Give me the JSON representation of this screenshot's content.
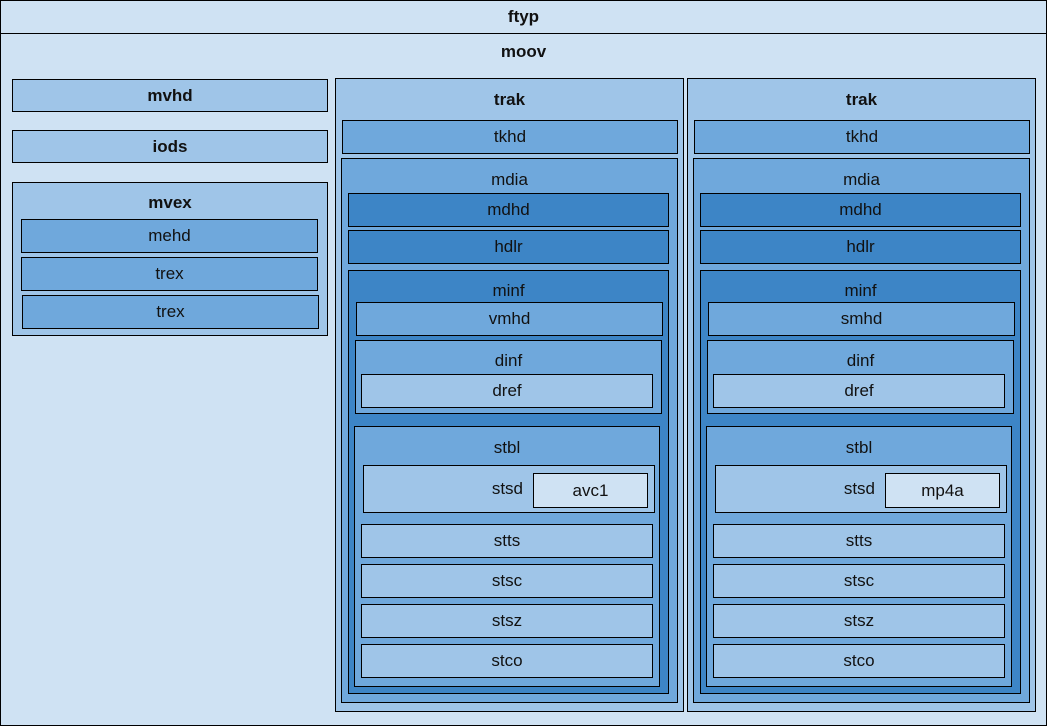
{
  "colors": {
    "lightest": "#cfe2f3",
    "light": "#9fc5e8",
    "medium": "#6fa8dc",
    "dark": "#3d85c6"
  },
  "ftyp": "ftyp",
  "moov": {
    "label": "moov",
    "mvhd": "mvhd",
    "iods": "iods",
    "mvex": {
      "label": "mvex",
      "children": [
        "mehd",
        "trex",
        "trex"
      ]
    },
    "traks": [
      {
        "label": "trak",
        "tkhd": "tkhd",
        "mdia": {
          "label": "mdia",
          "mdhd": "mdhd",
          "hdlr": "hdlr",
          "minf": {
            "label": "minf",
            "header": "vmhd",
            "dinf": {
              "label": "dinf",
              "dref": "dref"
            },
            "stbl": {
              "label": "stbl",
              "stsd": "stsd",
              "sample_entry": "avc1",
              "stts": "stts",
              "stsc": "stsc",
              "stsz": "stsz",
              "stco": "stco"
            }
          }
        }
      },
      {
        "label": "trak",
        "tkhd": "tkhd",
        "mdia": {
          "label": "mdia",
          "mdhd": "mdhd",
          "hdlr": "hdlr",
          "minf": {
            "label": "minf",
            "header": "smhd",
            "dinf": {
              "label": "dinf",
              "dref": "dref"
            },
            "stbl": {
              "label": "stbl",
              "stsd": "stsd",
              "sample_entry": "mp4a",
              "stts": "stts",
              "stsc": "stsc",
              "stsz": "stsz",
              "stco": "stco"
            }
          }
        }
      }
    ]
  }
}
